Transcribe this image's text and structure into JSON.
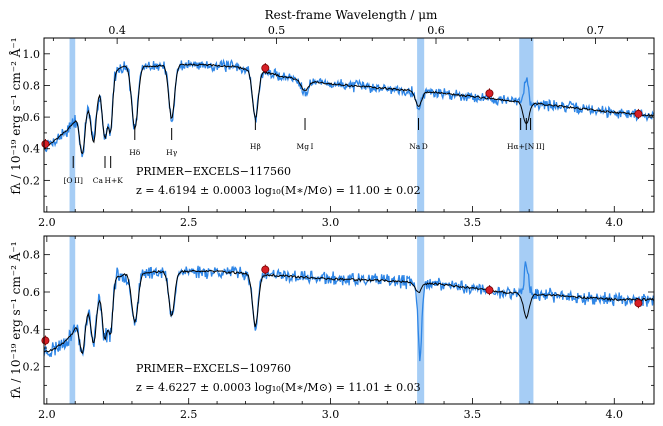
{
  "chart_data": {
    "type": "line",
    "x_unit": "micron (observed)",
    "top_axis": {
      "label": "Rest-frame Wavelength / μm",
      "ticks": [
        0.4,
        0.5,
        0.6,
        0.7
      ],
      "tick_labels": [
        "0.4",
        "0.5",
        "0.6",
        "0.7"
      ]
    },
    "ylabel": "fλ / 10⁻¹⁹ erg s⁻¹ cm⁻² Å⁻¹",
    "shaded_regions": [
      [
        2.08,
        2.1
      ],
      [
        3.305,
        3.33
      ],
      [
        3.665,
        3.715
      ]
    ],
    "line_markers": [
      {
        "label": "[O II]",
        "x": [
          2.093
        ],
        "tier": "low"
      },
      {
        "label": "Ca H+K",
        "x": [
          2.205,
          2.225
        ],
        "tier": "low"
      },
      {
        "label": "Hδ",
        "x": [
          2.31
        ],
        "tier": "mid"
      },
      {
        "label": "Hγ",
        "x": [
          2.44
        ],
        "tier": "mid"
      },
      {
        "label": "Hβ",
        "x": [
          2.735
        ],
        "tier": "high"
      },
      {
        "label": "Mg I",
        "x": [
          2.91
        ],
        "tier": "high"
      },
      {
        "label": "Na D",
        "x": [
          3.31
        ],
        "tier": "high"
      },
      {
        "label": "Hα+[N II]",
        "x": [
          3.67,
          3.69,
          3.705
        ],
        "tier": "high"
      }
    ],
    "panels": [
      {
        "name": "PRIMER−EXCELS−117560",
        "stats": "z = 4.6194 ± 0.0003    log₁₀(M∗/M⊙) = 11.00 ± 0.02",
        "xlim": [
          1.99,
          4.14
        ],
        "ylim": [
          0.0,
          1.1
        ],
        "xticks": [
          2.0,
          2.5,
          3.0,
          3.5,
          4.0
        ],
        "xtick_labels": [
          "2.0",
          "2.5",
          "3.0",
          "3.5",
          "4.0"
        ],
        "yticks": [
          0.2,
          0.4,
          0.6,
          0.8,
          1.0
        ],
        "ytick_labels": [
          "0.2",
          "0.4",
          "0.6",
          "0.8",
          "1.0"
        ],
        "photometry": [
          {
            "x": 1.995,
            "y": 0.43
          },
          {
            "x": 2.77,
            "y": 0.91
          },
          {
            "x": 3.56,
            "y": 0.75
          },
          {
            "x": 4.085,
            "y": 0.62
          }
        ],
        "continuum_points": [
          [
            1.99,
            0.4
          ],
          [
            2.02,
            0.44
          ],
          [
            2.06,
            0.5
          ],
          [
            2.09,
            0.55
          ],
          [
            2.12,
            0.63
          ],
          [
            2.15,
            0.7
          ],
          [
            2.18,
            0.78
          ],
          [
            2.21,
            0.84
          ],
          [
            2.25,
            0.9
          ],
          [
            2.28,
            0.93
          ],
          [
            2.32,
            0.93
          ],
          [
            2.36,
            0.92
          ],
          [
            2.45,
            0.93
          ],
          [
            2.55,
            0.93
          ],
          [
            2.65,
            0.92
          ],
          [
            2.75,
            0.89
          ],
          [
            2.85,
            0.85
          ],
          [
            3.0,
            0.81
          ],
          [
            3.2,
            0.78
          ],
          [
            3.4,
            0.75
          ],
          [
            3.6,
            0.71
          ],
          [
            3.8,
            0.67
          ],
          [
            4.0,
            0.63
          ],
          [
            4.14,
            0.61
          ]
        ],
        "absorptions": [
          {
            "x": 2.125,
            "depth": 0.28,
            "width": 0.009
          },
          {
            "x": 2.165,
            "depth": 0.3,
            "width": 0.009
          },
          {
            "x": 2.205,
            "depth": 0.36,
            "width": 0.009
          },
          {
            "x": 2.225,
            "depth": 0.32,
            "width": 0.007
          },
          {
            "x": 2.31,
            "depth": 0.4,
            "width": 0.011
          },
          {
            "x": 2.44,
            "depth": 0.34,
            "width": 0.01
          },
          {
            "x": 2.735,
            "depth": 0.3,
            "width": 0.01
          },
          {
            "x": 2.91,
            "depth": 0.07,
            "width": 0.012
          },
          {
            "x": 3.31,
            "depth": 0.1,
            "width": 0.01
          },
          {
            "x": 3.69,
            "depth": 0.14,
            "width": 0.01
          }
        ],
        "data_emission": {
          "x": 3.69,
          "height": 0.3,
          "width": 0.008
        },
        "seed": 7
      },
      {
        "name": "PRIMER−EXCELS−109760",
        "stats": "z = 4.6227 ± 0.0003    log₁₀(M∗/M⊙) = 11.01 ± 0.03",
        "xlim": [
          1.99,
          4.14
        ],
        "ylim": [
          0.0,
          0.9
        ],
        "xticks": [
          2.0,
          2.5,
          3.0,
          3.5,
          4.0
        ],
        "xtick_labels": [
          "2.0",
          "2.5",
          "3.0",
          "3.5",
          "4.0"
        ],
        "yticks": [
          0.2,
          0.4,
          0.6,
          0.8
        ],
        "ytick_labels": [
          "0.2",
          "0.4",
          "0.6",
          "0.8"
        ],
        "photometry": [
          {
            "x": 1.995,
            "y": 0.34
          },
          {
            "x": 2.77,
            "y": 0.72
          },
          {
            "x": 3.56,
            "y": 0.61
          },
          {
            "x": 4.085,
            "y": 0.54
          }
        ],
        "continuum_points": [
          [
            1.99,
            0.28
          ],
          [
            2.02,
            0.29
          ],
          [
            2.06,
            0.33
          ],
          [
            2.09,
            0.38
          ],
          [
            2.12,
            0.46
          ],
          [
            2.15,
            0.53
          ],
          [
            2.18,
            0.59
          ],
          [
            2.21,
            0.64
          ],
          [
            2.25,
            0.68
          ],
          [
            2.28,
            0.7
          ],
          [
            2.32,
            0.7
          ],
          [
            2.4,
            0.71
          ],
          [
            2.5,
            0.71
          ],
          [
            2.6,
            0.71
          ],
          [
            2.7,
            0.7
          ],
          [
            2.8,
            0.69
          ],
          [
            2.9,
            0.68
          ],
          [
            3.0,
            0.67
          ],
          [
            3.2,
            0.66
          ],
          [
            3.4,
            0.64
          ],
          [
            3.6,
            0.6
          ],
          [
            3.8,
            0.58
          ],
          [
            4.0,
            0.56
          ],
          [
            4.14,
            0.56
          ]
        ],
        "absorptions": [
          {
            "x": 2.125,
            "depth": 0.2,
            "width": 0.009
          },
          {
            "x": 2.165,
            "depth": 0.24,
            "width": 0.009
          },
          {
            "x": 2.205,
            "depth": 0.28,
            "width": 0.009
          },
          {
            "x": 2.225,
            "depth": 0.26,
            "width": 0.007
          },
          {
            "x": 2.31,
            "depth": 0.26,
            "width": 0.011
          },
          {
            "x": 2.44,
            "depth": 0.24,
            "width": 0.01
          },
          {
            "x": 2.735,
            "depth": 0.28,
            "width": 0.01
          },
          {
            "x": 3.31,
            "depth": 0.05,
            "width": 0.01
          },
          {
            "x": 3.69,
            "depth": 0.13,
            "width": 0.01
          }
        ],
        "data_absorptions": [
          {
            "x": 3.315,
            "depth": 0.36,
            "width": 0.006
          }
        ],
        "data_emission": {
          "x": 3.69,
          "height": 0.3,
          "width": 0.008
        },
        "seed": 23
      }
    ],
    "colors": {
      "data": "#2f86e6",
      "model": "#000000",
      "shade": "#9cc8f4",
      "phot_fill": "#d61f26",
      "phot_edge": "#7a0000"
    }
  }
}
